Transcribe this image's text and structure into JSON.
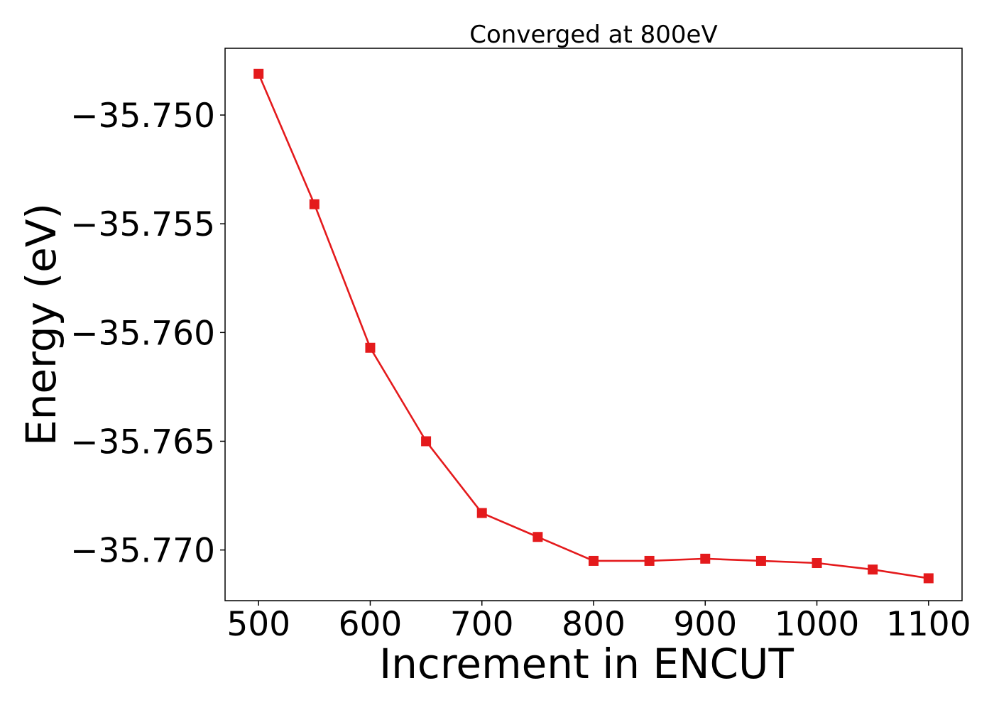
{
  "chart_data": {
    "type": "line",
    "title": "Converged at 800eV",
    "xlabel": "Increment in ENCUT",
    "ylabel": "Energy (eV)",
    "x": [
      500,
      550,
      600,
      650,
      700,
      750,
      800,
      850,
      900,
      950,
      1000,
      1050,
      1100
    ],
    "series": [
      {
        "values": [
          -35.7481,
          -35.7541,
          -35.7607,
          -35.765,
          -35.7683,
          -35.7694,
          -35.7705,
          -35.7705,
          -35.7704,
          -35.7705,
          -35.7706,
          -35.7709,
          -35.7713
        ],
        "color": "#e41a1c",
        "marker": "square"
      }
    ],
    "xlim": [
      470,
      1130
    ],
    "ylim": [
      -35.77233,
      -35.74693
    ],
    "x_ticks": [
      500,
      600,
      700,
      800,
      900,
      1000,
      1100
    ],
    "x_tick_labels": [
      "500",
      "600",
      "700",
      "800",
      "900",
      "1000",
      "1100"
    ],
    "y_ticks": [
      -35.75,
      -35.755,
      -35.76,
      -35.765,
      -35.77
    ],
    "y_tick_labels": [
      "−35.750",
      "−35.755",
      "−35.760",
      "−35.765",
      "−35.770"
    ],
    "grid": false,
    "legend": "none"
  }
}
